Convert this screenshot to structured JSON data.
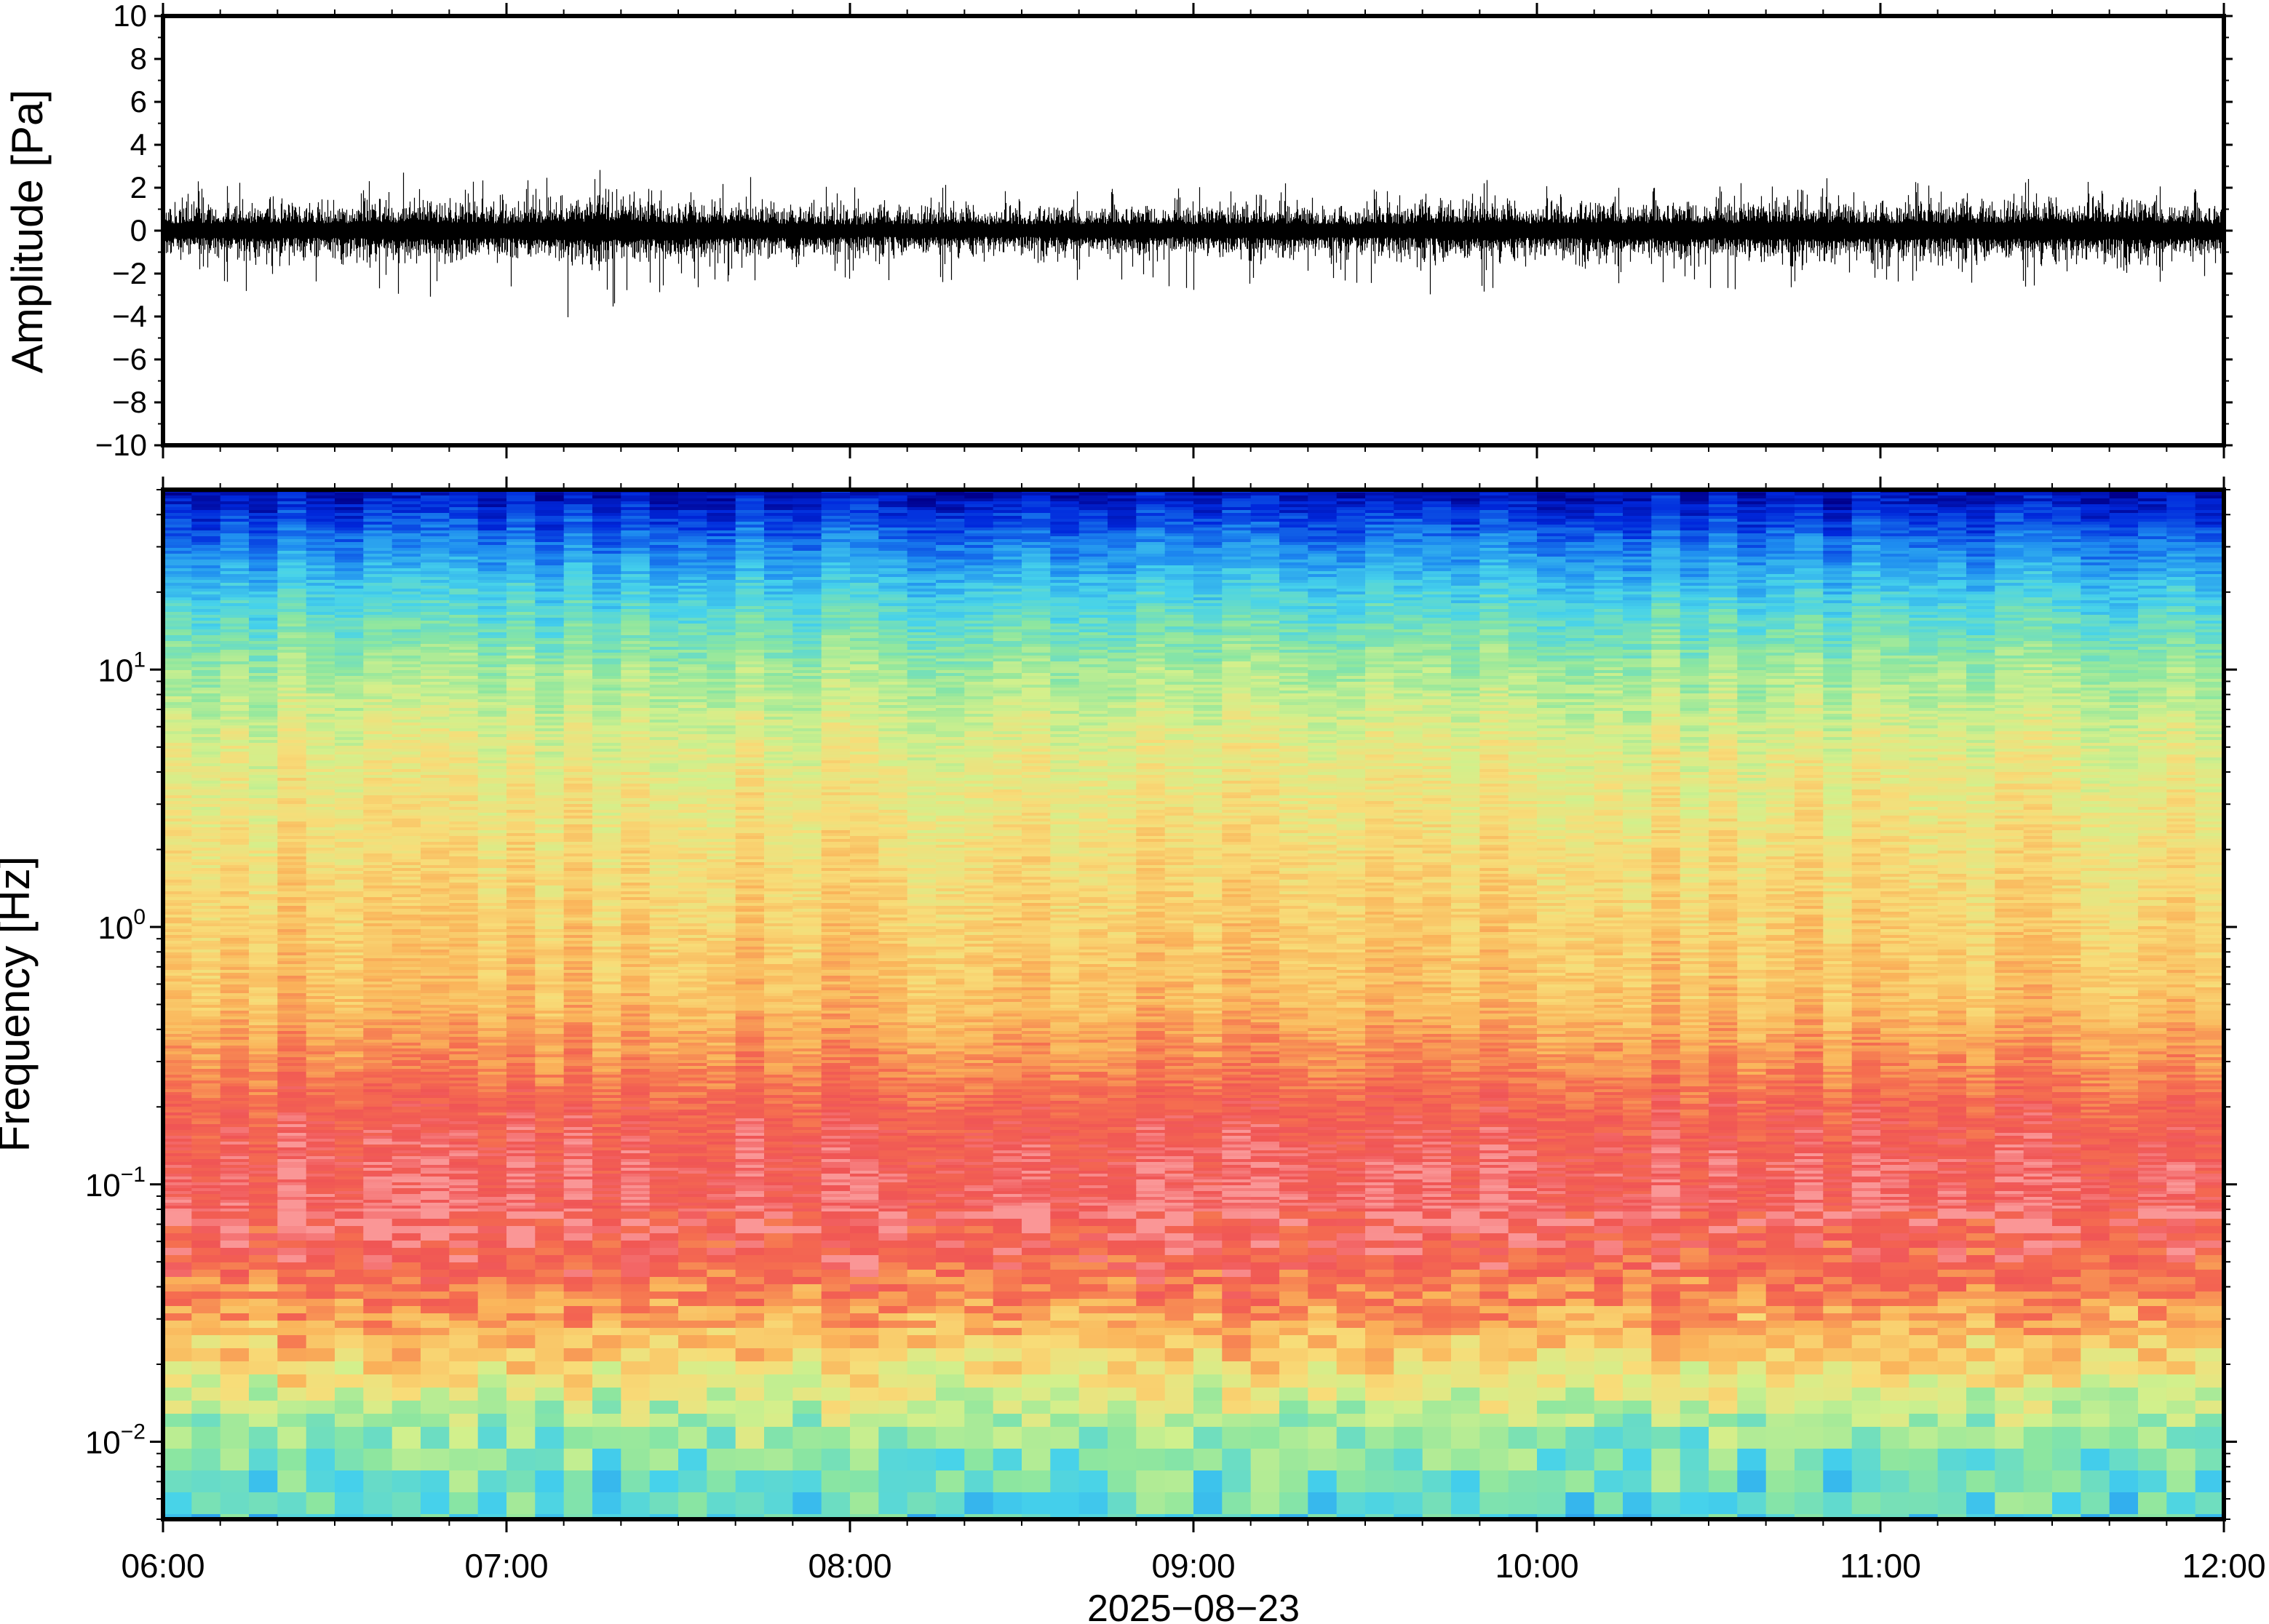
{
  "chart_data": [
    {
      "type": "line",
      "panel": "waveform",
      "ylabel": "Amplitude [Pa]",
      "ylim": [
        -10,
        10
      ],
      "yticks": [
        10,
        8,
        6,
        4,
        2,
        0,
        -2,
        -4,
        -6,
        -8,
        -10
      ],
      "ytick_labels": [
        "10",
        "8",
        "6",
        "4",
        "2",
        "0",
        "−2",
        "−4",
        "−6",
        "−8",
        "−10"
      ],
      "xlim": [
        "06:00",
        "12:00"
      ],
      "series": [
        {
          "color": "#000000",
          "x": [
            "06:00",
            "06:15",
            "06:30",
            "06:45",
            "07:00",
            "07:15",
            "07:30",
            "07:45",
            "08:00",
            "08:15",
            "08:30",
            "08:45",
            "09:00",
            "09:15",
            "09:30",
            "09:45",
            "10:00",
            "10:15",
            "10:30",
            "10:45",
            "11:00",
            "11:15",
            "11:30",
            "11:45",
            "12:00"
          ],
          "max": [
            2.2,
            2.5,
            2.6,
            2.8,
            2.2,
            2.9,
            2.4,
            2.6,
            2.0,
            2.3,
            2.1,
            2.4,
            2.2,
            2.3,
            2.0,
            2.6,
            2.4,
            2.5,
            2.3,
            2.6,
            2.4,
            2.5,
            2.6,
            2.7,
            2.2
          ],
          "min": [
            -2.4,
            -2.9,
            -3.0,
            -3.2,
            -2.7,
            -4.6,
            -2.6,
            -2.8,
            -2.4,
            -2.6,
            -2.3,
            -2.5,
            -2.8,
            -2.4,
            -2.6,
            -3.4,
            -2.5,
            -2.6,
            -2.8,
            -2.7,
            -2.5,
            -2.6,
            -2.9,
            -2.6,
            -2.3
          ],
          "envelope": [
            1.2,
            1.4,
            1.3,
            1.6,
            1.3,
            1.7,
            1.4,
            1.3,
            1.1,
            1.2,
            1.1,
            1.2,
            1.2,
            1.3,
            1.1,
            1.5,
            1.3,
            1.4,
            1.4,
            1.5,
            1.4,
            1.4,
            1.5,
            1.5,
            1.2
          ]
        }
      ]
    },
    {
      "type": "heatmap",
      "panel": "spectrogram",
      "ylabel": "Frequency [Hz]",
      "yscale": "log",
      "ylim": [
        0.005,
        50
      ],
      "yticks": [
        0.01,
        0.1,
        1,
        10
      ],
      "ytick_labels": [
        {
          "base": "10",
          "exp": "−2"
        },
        {
          "base": "10",
          "exp": "−1"
        },
        {
          "base": "10",
          "exp": "0"
        },
        {
          "base": "10",
          "exp": "1"
        }
      ],
      "xlim": [
        "06:00",
        "12:00"
      ],
      "xticks": [
        "06:00",
        "07:00",
        "08:00",
        "09:00",
        "10:00",
        "11:00",
        "12:00"
      ],
      "xlabel": "2025−08−23",
      "colormap": "rainbow (blue=low power, red=high power)",
      "frequency_profile": {
        "frequency_hz": [
          0.005,
          0.007,
          0.01,
          0.015,
          0.02,
          0.03,
          0.05,
          0.08,
          0.12,
          0.2,
          0.3,
          0.5,
          1,
          2,
          5,
          10,
          20,
          30,
          40,
          50
        ],
        "relative_power": [
          0.38,
          0.42,
          0.46,
          0.58,
          0.68,
          0.78,
          0.9,
          0.96,
          0.95,
          0.9,
          0.82,
          0.74,
          0.7,
          0.66,
          0.6,
          0.5,
          0.34,
          0.22,
          0.12,
          0.04
        ]
      }
    }
  ]
}
